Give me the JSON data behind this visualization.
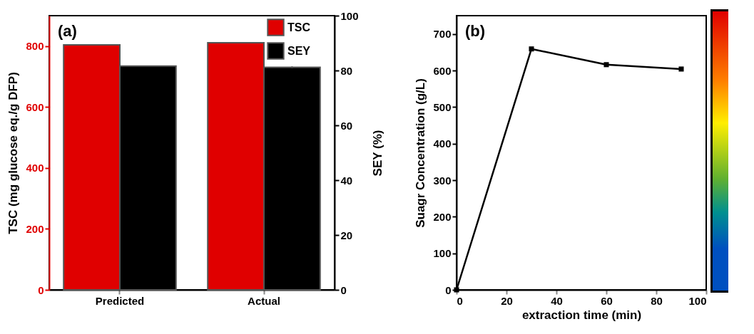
{
  "chart_data": [
    {
      "type": "bar",
      "categories": [
        "Predicted",
        "Actual"
      ],
      "ylabel": "TSC (mg glucose eq./g DFP)",
      "y2label": "SEY (%)",
      "series": [
        {
          "name": "TSC",
          "color": "#e00000",
          "values": [
            804,
            811
          ]
        },
        {
          "name": "SEY",
          "color": "#000000",
          "axis": "y2",
          "values": [
            81.6,
            81.2
          ],
          "errors": [
            null,
            0.3
          ]
        }
      ],
      "ylim": [
        0,
        900
      ],
      "yticks": [
        0,
        200,
        400,
        600,
        800
      ],
      "y2lim": [
        0,
        100
      ],
      "y2ticks": [
        0,
        20,
        40,
        60,
        80,
        100
      ],
      "legend": "top right",
      "annotations": [
        "(a)"
      ]
    },
    {
      "type": "line",
      "x": [
        0,
        30,
        60,
        90
      ],
      "values": [
        0,
        659,
        616,
        604
      ],
      "color": "#000000",
      "marker": "square",
      "xlabel": "extraction time (min)",
      "ylabel": "Suagr Concentration (g/L)",
      "xlim": [
        0,
        100
      ],
      "xticks": [
        0,
        20,
        40,
        60,
        80,
        100
      ],
      "ylim": [
        0,
        750
      ],
      "yticks": [
        0,
        100,
        200,
        300,
        400,
        500,
        600,
        700
      ],
      "annotations": [
        "(b)"
      ]
    }
  ]
}
